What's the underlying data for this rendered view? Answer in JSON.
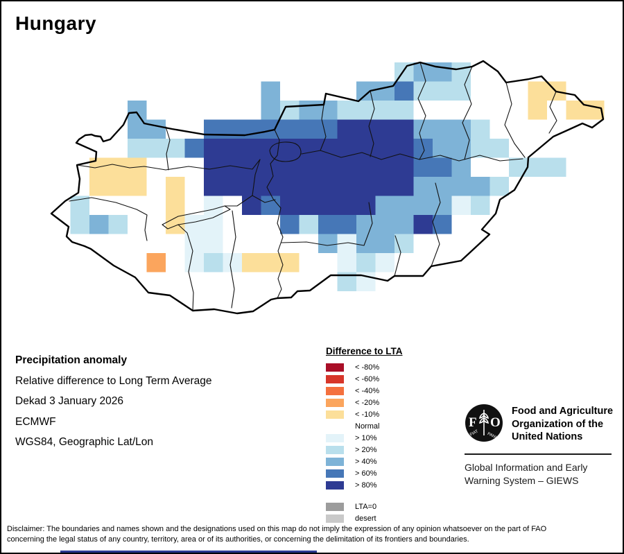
{
  "title": "Hungary",
  "info": {
    "heading": "Precipitation anomaly",
    "line1": "Relative difference to Long Term Average",
    "line2": "Dekad 3 January 2026",
    "line3": "ECMWF",
    "line4": "WGS84, Geographic Lat/Lon"
  },
  "legend": {
    "title": "Difference to LTA",
    "entries": [
      {
        "label": "< -80%",
        "color": "#A90E27"
      },
      {
        "label": "< -60%",
        "color": "#D7362A"
      },
      {
        "label": "< -40%",
        "color": "#F4703E"
      },
      {
        "label": "< -20%",
        "color": "#FBA55D"
      },
      {
        "label": "< -10%",
        "color": "#FCDF9A"
      },
      {
        "label": "Normal",
        "color": "#FFFFFF"
      },
      {
        "label": "> 10%",
        "color": "#E3F3F9"
      },
      {
        "label": "> 20%",
        "color": "#B9DFEC"
      },
      {
        "label": "> 40%",
        "color": "#7EB3D7"
      },
      {
        "label": "> 60%",
        "color": "#4677B7"
      },
      {
        "label": "> 80%",
        "color": "#2E3B93"
      }
    ],
    "extra_entries": [
      {
        "label": "LTA=0",
        "color": "#9C9C9C"
      },
      {
        "label": "desert",
        "color": "#C9C9C9"
      }
    ]
  },
  "fao": {
    "logo_text": "FAO",
    "logo_motto_left": "FIAT",
    "logo_motto_right": "PANIS",
    "org_lines": [
      "Food and Agriculture",
      "Organization of the",
      "United Nations"
    ],
    "giews_lines": [
      "Global Information and Early",
      "Warning System – GIEWS"
    ]
  },
  "disclaimer": {
    "line1": "Disclaimer: The boundaries and names shown and the designations used on this map do not imply the expression of any opinion whatsoever on the part of FAO",
    "line2": "concerning the legal status of any country, territory, area or of its authorities, or concerning the delimitation of its frontiers and boundaries."
  },
  "misc": {
    "bottom_partial_bar_color": "#2B3990"
  },
  "map_data": {
    "type": "heatmap",
    "region": "Hungary",
    "description": "Precipitation anomaly raster, relative difference to Long Term Average, Dekad 3 January 2026",
    "grid_origin": [
      72,
      88
    ],
    "cell_size": 27.5,
    "palette": {
      "1": "#E3F3F9",
      "2": "#B9DFEC",
      "3": "#7EB3D7",
      "4": "#4677B7",
      "5": "#2E3B93",
      "Y": "#FCDF9A",
      "O": "#FBA55D"
    },
    "legend_key": {
      "1": "> 10%",
      "2": "> 20%",
      "3": "> 40%",
      "4": "> 60%",
      "5": "> 80%",
      "Y": "< -10%",
      "O": "< -20%",
      ".": "normal / outside"
    },
    "rows": [
      "..................2332.......",
      "...........3....334222...YY..",
      "....3......32332222......Y.YY",
      "....33..444444455553332......",
      "....22245555555555543322.....",
      "..YYY...55555555555443..222..",
      "..YYY.Y.5555555555533332.....",
      ".2....Y.1.5455555333312......",
      ".232..Y11...424433354........",
      ".......11.....31332..........",
      ".....O.121YYY..121...........",
      "...............21............"
    ]
  }
}
